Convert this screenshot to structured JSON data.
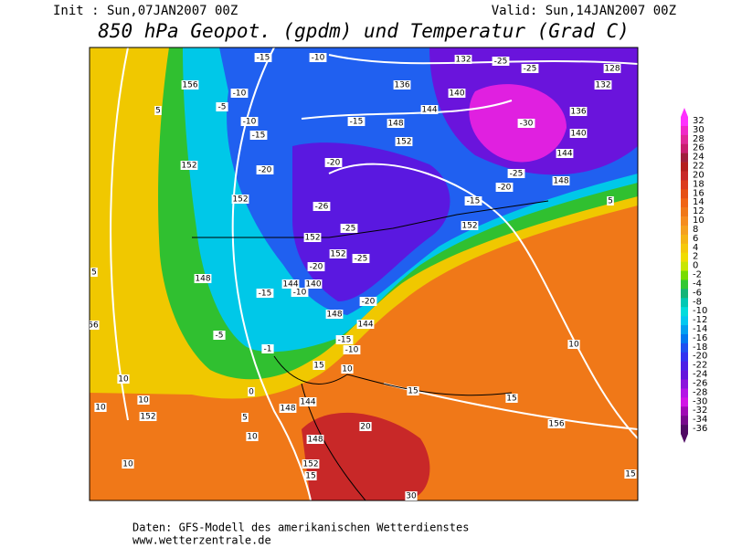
{
  "header": {
    "init": "Init : Sun,07JAN2007 00Z",
    "valid": "Valid: Sun,14JAN2007 00Z",
    "title": "850 hPa Geopot. (gpdm) und Temperatur (Grad C)"
  },
  "colorbar": {
    "labels": [
      32,
      30,
      28,
      26,
      24,
      22,
      20,
      18,
      16,
      14,
      12,
      10,
      8,
      6,
      4,
      2,
      0,
      -2,
      -4,
      -6,
      -8,
      -10,
      -12,
      -14,
      -16,
      -18,
      -20,
      -22,
      -24,
      -26,
      -28,
      -30,
      -32,
      -34,
      -36
    ],
    "colors": [
      "#ff30ff",
      "#f028c8",
      "#e02898",
      "#c81e6e",
      "#a01e3c",
      "#b41e1e",
      "#c82828",
      "#dc3c1e",
      "#e65014",
      "#f06414",
      "#f07818",
      "#f58c1e",
      "#f5a01e",
      "#f5b414",
      "#f5c80a",
      "#f0dc00",
      "#c8e600",
      "#78dc00",
      "#32c832",
      "#14b478",
      "#00c8b4",
      "#00dcdc",
      "#00c8f0",
      "#00a0f0",
      "#0078f0",
      "#1e50f0",
      "#3232f0",
      "#4b1ee6",
      "#6414dc",
      "#8c14dc",
      "#b414e6",
      "#d214e6",
      "#a00ab4",
      "#780a8c",
      "#500a64"
    ]
  },
  "map": {
    "contour_labels": [
      -15,
      -10,
      132,
      -25,
      -25,
      128,
      156,
      136,
      140,
      132,
      -10,
      -5,
      5,
      -10,
      144,
      -15,
      148,
      -30,
      136,
      -15,
      140,
      152,
      -20,
      152,
      -20,
      144,
      -25,
      148,
      -20,
      152,
      -26,
      -15,
      -25,
      152,
      152,
      5,
      152,
      -25,
      -20,
      5,
      148,
      144,
      140,
      -10,
      -15,
      -20,
      148,
      144,
      56,
      -5,
      -15,
      10,
      -1,
      -10,
      10,
      15,
      10,
      0,
      15,
      10,
      144,
      15,
      10,
      152,
      5,
      148,
      20,
      156,
      10,
      148,
      10,
      152,
      15,
      15,
      30
    ]
  },
  "footer": {
    "source": "Daten: GFS-Modell des amerikanischen Wetterdienstes",
    "url": "www.wetterzentrale.de"
  }
}
